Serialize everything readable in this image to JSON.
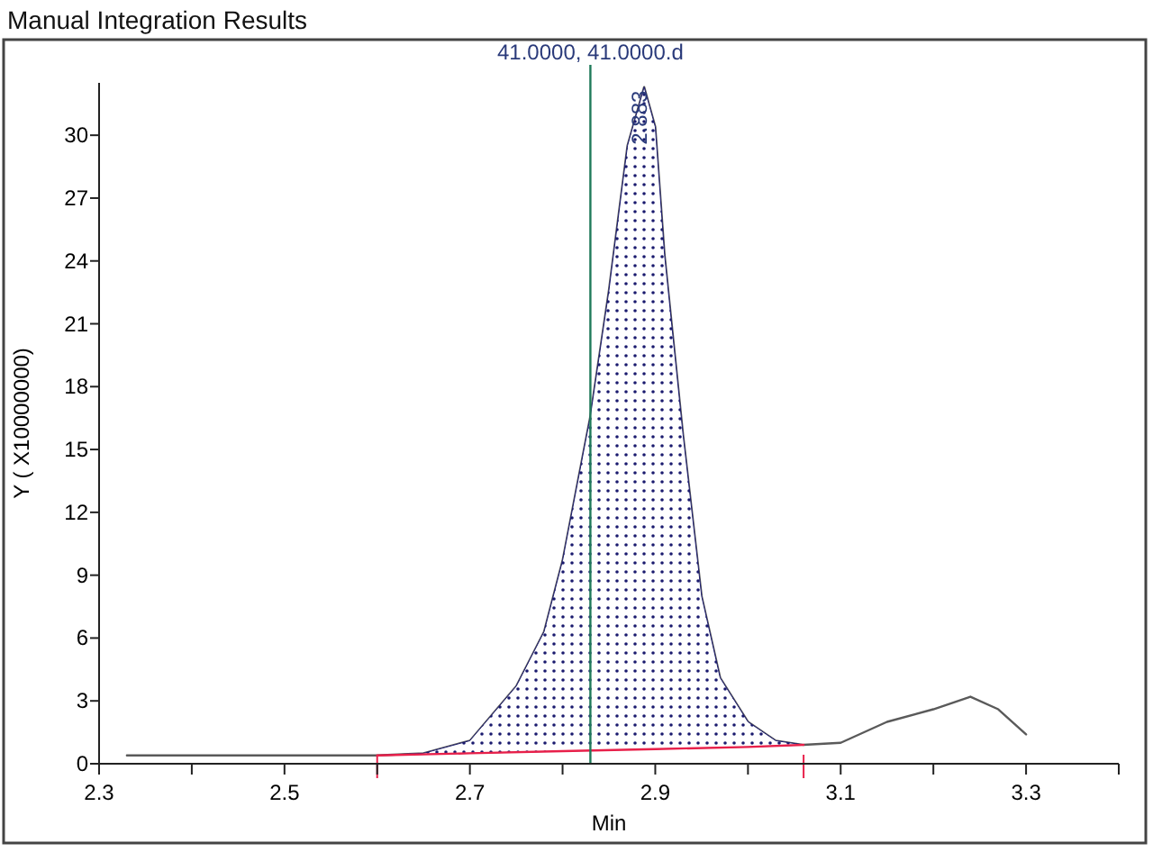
{
  "chart_data": {
    "type": "line",
    "title": "Manual Integration Results",
    "xlabel": "Min",
    "ylabel": "Y ( X10000000)",
    "xlim": [
      2.3,
      3.4
    ],
    "xticks": [
      2.3,
      {
        "value": 2.4,
        "label": null
      },
      2.5,
      {
        "value": 2.6,
        "label": null
      },
      2.7,
      {
        "value": 2.8,
        "label": null
      },
      2.9,
      {
        "value": 3.0,
        "label": null
      },
      3.1,
      {
        "value": 3.2,
        "label": null
      },
      3.3,
      {
        "value": 3.4,
        "label": null
      }
    ],
    "ylim": [
      0,
      32.5
    ],
    "yticks": [
      0,
      3,
      6,
      9,
      12,
      15,
      18,
      21,
      24,
      27,
      30
    ],
    "grid": false,
    "marker": "none",
    "line_style": "solid",
    "series": [
      {
        "color": "#5a5a5a",
        "x": [
          2.33,
          2.6,
          2.65,
          2.7,
          2.75,
          2.78,
          2.8,
          2.83,
          2.85,
          2.87,
          2.888,
          2.9,
          2.91,
          2.93,
          2.95,
          2.97,
          3.0,
          3.03,
          3.06,
          3.1,
          3.15,
          3.2,
          3.24,
          3.27,
          3.3
        ],
        "values": [
          0.4,
          0.4,
          0.5,
          1.1,
          3.7,
          6.3,
          9.7,
          16.6,
          22.6,
          29.5,
          32.3,
          30.4,
          24.3,
          15.7,
          8,
          4.1,
          2,
          1.1,
          0.9,
          1.0,
          2,
          2.6,
          3.2,
          2.6,
          1.4
        ]
      },
      {
        "type": "area",
        "color": "#1a1a6e",
        "x": [
          2.6,
          2.65,
          2.7,
          2.75,
          2.78,
          2.8,
          2.83,
          2.85,
          2.87,
          2.888,
          2.9,
          2.91,
          2.93,
          2.95,
          2.97,
          3.0,
          3.03,
          3.06
        ],
        "values": [
          0.4,
          0.5,
          1.1,
          3.7,
          6.3,
          9.7,
          16.6,
          22.6,
          29.5,
          32.3,
          30.4,
          24.3,
          15.7,
          8,
          4.1,
          2,
          1.1,
          0.9
        ]
      },
      {
        "color": "#e8204a",
        "x": [
          2.6,
          2.7,
          2.8,
          2.9,
          3.0,
          3.06
        ],
        "values": [
          0.4,
          0.5,
          0.6,
          0.7,
          0.8,
          0.9
        ]
      }
    ],
    "ref_lines": [
      {
        "axis": "x",
        "value": 2.83,
        "label": "41.0000, 41.0000.d",
        "color": "#1f7a5a"
      }
    ],
    "annotations": [
      {
        "text": "2.883",
        "x": 2.883,
        "y": 32.3
      }
    ]
  }
}
